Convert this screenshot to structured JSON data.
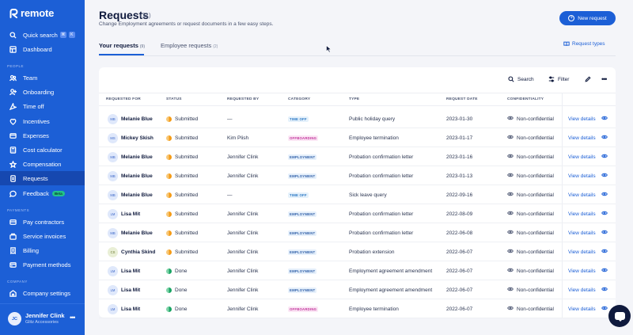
{
  "brand": {
    "name": "remote"
  },
  "sidebar": {
    "quick_search": {
      "label": "Quick search",
      "keys": [
        "⌘",
        "K"
      ]
    },
    "dashboard": "Dashboard",
    "people_label": "PEOPLE",
    "people": [
      {
        "label": "Team",
        "icon": "team-icon"
      },
      {
        "label": "Onboarding",
        "icon": "onboarding-icon"
      },
      {
        "label": "Time off",
        "icon": "time-off-icon"
      },
      {
        "label": "Incentives",
        "icon": "incentives-icon"
      },
      {
        "label": "Expenses",
        "icon": "expenses-icon"
      },
      {
        "label": "Cost calculator",
        "icon": "calculator-icon"
      },
      {
        "label": "Compensation",
        "icon": "compensation-icon"
      },
      {
        "label": "Requests",
        "icon": "requests-icon"
      },
      {
        "label": "Feedback",
        "icon": "feedback-icon",
        "badge": "Beta"
      }
    ],
    "payments_label": "PAYMENTS",
    "payments": [
      {
        "label": "Pay contractors",
        "icon": "pay-contractors-icon"
      },
      {
        "label": "Service invoices",
        "icon": "invoices-icon"
      },
      {
        "label": "Billing",
        "icon": "billing-icon"
      },
      {
        "label": "Payment methods",
        "icon": "payment-methods-icon"
      }
    ],
    "company_label": "COMPANY",
    "company": [
      {
        "label": "Company settings",
        "icon": "company-settings-icon"
      }
    ],
    "user": {
      "initials": "JC",
      "name": "Jennifer Clink",
      "company": "Glitz Accessories"
    },
    "colors": {
      "background": "#1c5fd6",
      "active": "#1648b0"
    }
  },
  "header": {
    "title": "Requests",
    "count": "(11)",
    "subtitle": "Change Employment agreements or request documents in a few easy steps.",
    "new_button": "New request"
  },
  "tabs": [
    {
      "label": "Your requests",
      "count": "(9)",
      "active": true
    },
    {
      "label": "Employee requests",
      "count": "(2)",
      "active": false
    }
  ],
  "request_types": "Request types",
  "toolbar": {
    "search": "Search",
    "filter": "Filter"
  },
  "table": {
    "headers": [
      "REQUESTED FOR",
      "STATUS",
      "REQUESTED BY",
      "CATEGORY",
      "TYPE",
      "REQUEST DATE",
      "CONFIDENTIALITY"
    ],
    "rows": [
      {
        "initials": "MB",
        "name": "Melanie Blue",
        "status": "Submitted",
        "by": "—",
        "category": "TIME OFF",
        "type": "Public holiday query",
        "date": "2023-01-30",
        "conf": "Non-confidential",
        "action": "View details"
      },
      {
        "initials": "MS",
        "name": "Mickey Skish",
        "status": "Submitted",
        "by": "Kim Plish",
        "category": "OFFBOARDING",
        "type": "Employee termination",
        "date": "2023-01-17",
        "conf": "Non-confidential",
        "action": "View details"
      },
      {
        "initials": "MB",
        "name": "Melanie Blue",
        "status": "Submitted",
        "by": "Jennifer Clink",
        "category": "EMPLOYMENT",
        "type": "Probation confirmation letter",
        "date": "2023-01-16",
        "conf": "Non-confidential",
        "action": "View details"
      },
      {
        "initials": "MB",
        "name": "Melanie Blue",
        "status": "Submitted",
        "by": "Jennifer Clink",
        "category": "EMPLOYMENT",
        "type": "Probation confirmation letter",
        "date": "2023-01-13",
        "conf": "Non-confidential",
        "action": "View details"
      },
      {
        "initials": "MB",
        "name": "Melanie Blue",
        "status": "Submitted",
        "by": "—",
        "category": "TIME OFF",
        "type": "Sick leave query",
        "date": "2022-09-16",
        "conf": "Non-confidential",
        "action": "View details"
      },
      {
        "initials": "LM",
        "name": "Lisa Mit",
        "status": "Submitted",
        "by": "Jennifer Clink",
        "category": "EMPLOYMENT",
        "type": "Probation confirmation letter",
        "date": "2022-08-09",
        "conf": "Non-confidential",
        "action": "View details"
      },
      {
        "initials": "MB",
        "name": "Melanie Blue",
        "status": "Submitted",
        "by": "Jennifer Clink",
        "category": "EMPLOYMENT",
        "type": "Probation confirmation letter",
        "date": "2022-06-08",
        "conf": "Non-confidential",
        "action": "View details"
      },
      {
        "initials": "CS",
        "name": "Cynthia Skind",
        "status": "Submitted",
        "by": "Jennifer Clink",
        "category": "EMPLOYMENT",
        "type": "Probation extension",
        "date": "2022-06-07",
        "conf": "Non-confidential",
        "action": "View details"
      },
      {
        "initials": "LM",
        "name": "Lisa Mit",
        "status": "Done",
        "by": "Jennifer Clink",
        "category": "EMPLOYMENT",
        "type": "Employment agreement amendment",
        "date": "2022-06-07",
        "conf": "Non-confidential",
        "action": "View details"
      },
      {
        "initials": "LM",
        "name": "Lisa Mit",
        "status": "Done",
        "by": "Jennifer Clink",
        "category": "EMPLOYMENT",
        "type": "Employment agreement amendment",
        "date": "2022-06-07",
        "conf": "Non-confidential",
        "action": "View details"
      },
      {
        "initials": "LM",
        "name": "Lisa Mit",
        "status": "Done",
        "by": "Jennifer Clink",
        "category": "OFFBOARDING",
        "type": "Employee termination",
        "date": "2022-06-07",
        "conf": "Non-confidential",
        "action": "View details"
      }
    ]
  },
  "colors": {
    "accent": "#1c5fd6",
    "submitted": "#f59b16",
    "done": "#19a463",
    "offboarding": "#c2359c"
  }
}
